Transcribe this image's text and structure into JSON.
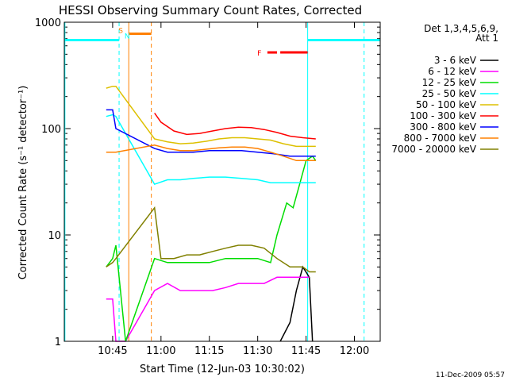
{
  "chart_data": {
    "type": "line",
    "title": "HESSI Observing Summary Count Rates, Corrected",
    "xlabel": "Start Time (12-Jun-03 10:30:02)",
    "ylabel": "Corrected Count Rate (s⁻¹ detector⁻¹)",
    "x_unit": "minutes since 10:30",
    "xlim": [
      30.0,
      128.0
    ],
    "ylim": [
      1,
      1000
    ],
    "y_scale": "log",
    "x_ticks": [
      {
        "v": 45,
        "label": "10:45"
      },
      {
        "v": 60,
        "label": "11:00"
      },
      {
        "v": 75,
        "label": "11:15"
      },
      {
        "v": 90,
        "label": "11:30"
      },
      {
        "v": 105,
        "label": "11:45"
      },
      {
        "v": 120,
        "label": "12:00"
      }
    ],
    "y_ticks": [
      {
        "v": 1,
        "label": "1"
      },
      {
        "v": 10,
        "label": "10"
      },
      {
        "v": 100,
        "label": "100"
      },
      {
        "v": 1000,
        "label": "1000"
      }
    ],
    "legend_title": "Det 1,3,4,5,6,9,",
    "legend_subtitle": "Att 1",
    "legend_placement": "right",
    "series": [
      {
        "name": "3 - 6 keV",
        "color": "#000000",
        "points": [
          [
            97,
            1
          ],
          [
            100,
            1.5
          ],
          [
            102,
            3
          ],
          [
            104,
            5
          ],
          [
            106,
            4
          ],
          [
            107,
            1
          ]
        ]
      },
      {
        "name": "6 - 12 keV",
        "color": "#ff00ff",
        "points": [
          [
            43,
            2.5
          ],
          [
            45,
            2.5
          ],
          [
            46,
            1
          ],
          [
            49,
            1
          ],
          [
            58,
            3
          ],
          [
            62,
            3.5
          ],
          [
            66,
            3
          ],
          [
            72,
            3
          ],
          [
            76,
            3
          ],
          [
            80,
            3.2
          ],
          [
            84,
            3.5
          ],
          [
            88,
            3.5
          ],
          [
            92,
            3.5
          ],
          [
            96,
            4
          ],
          [
            100,
            4
          ],
          [
            104,
            4
          ],
          [
            106,
            4
          ]
        ]
      },
      {
        "name": "12 - 25 keV",
        "color": "#00dd00",
        "points": [
          [
            43,
            5
          ],
          [
            45,
            6
          ],
          [
            46,
            8
          ],
          [
            49,
            1
          ],
          [
            58,
            6
          ],
          [
            62,
            5.5
          ],
          [
            66,
            5.5
          ],
          [
            70,
            5.5
          ],
          [
            75,
            5.5
          ],
          [
            80,
            6
          ],
          [
            85,
            6
          ],
          [
            90,
            6
          ],
          [
            94,
            5.5
          ],
          [
            96,
            10
          ],
          [
            99,
            20
          ],
          [
            101,
            18
          ],
          [
            103,
            30
          ],
          [
            105,
            50
          ],
          [
            107,
            55
          ],
          [
            108,
            50
          ]
        ]
      },
      {
        "name": "25 - 50 keV",
        "color": "#00ffff",
        "points": [
          [
            43,
            130
          ],
          [
            45,
            135
          ],
          [
            46,
            130
          ],
          [
            58,
            30
          ],
          [
            62,
            33
          ],
          [
            66,
            33
          ],
          [
            70,
            34
          ],
          [
            75,
            35
          ],
          [
            80,
            35
          ],
          [
            85,
            34
          ],
          [
            90,
            33
          ],
          [
            94,
            31
          ],
          [
            98,
            31
          ],
          [
            102,
            31
          ],
          [
            106,
            31
          ],
          [
            108,
            31
          ]
        ]
      },
      {
        "name": "50 - 100 keV",
        "color": "#ddc000",
        "points": [
          [
            43,
            240
          ],
          [
            45,
            250
          ],
          [
            46,
            250
          ],
          [
            58,
            80
          ],
          [
            62,
            75
          ],
          [
            66,
            72
          ],
          [
            70,
            73
          ],
          [
            74,
            76
          ],
          [
            78,
            80
          ],
          [
            82,
            82
          ],
          [
            86,
            82
          ],
          [
            90,
            80
          ],
          [
            94,
            78
          ],
          [
            98,
            72
          ],
          [
            102,
            68
          ],
          [
            106,
            68
          ],
          [
            108,
            68
          ]
        ]
      },
      {
        "name": "100 - 300 keV",
        "color": "#ff0000",
        "points": [
          [
            58,
            140
          ],
          [
            60,
            115
          ],
          [
            64,
            95
          ],
          [
            68,
            88
          ],
          [
            72,
            90
          ],
          [
            76,
            95
          ],
          [
            80,
            100
          ],
          [
            84,
            103
          ],
          [
            88,
            102
          ],
          [
            92,
            98
          ],
          [
            96,
            92
          ],
          [
            100,
            85
          ],
          [
            104,
            82
          ],
          [
            108,
            80
          ]
        ]
      },
      {
        "name": "300 - 800 keV",
        "color": "#0000ff",
        "points": [
          [
            43,
            150
          ],
          [
            45,
            150
          ],
          [
            46,
            100
          ],
          [
            58,
            65
          ],
          [
            62,
            60
          ],
          [
            66,
            60
          ],
          [
            70,
            60
          ],
          [
            75,
            62
          ],
          [
            80,
            62
          ],
          [
            85,
            62
          ],
          [
            90,
            60
          ],
          [
            95,
            58
          ],
          [
            100,
            55
          ],
          [
            104,
            55
          ],
          [
            108,
            55
          ]
        ]
      },
      {
        "name": "800 - 7000 keV",
        "color": "#ff8000",
        "points": [
          [
            43,
            60
          ],
          [
            45,
            60
          ],
          [
            46,
            60
          ],
          [
            58,
            70
          ],
          [
            62,
            65
          ],
          [
            66,
            62
          ],
          [
            70,
            62
          ],
          [
            74,
            64
          ],
          [
            78,
            66
          ],
          [
            82,
            67
          ],
          [
            86,
            67
          ],
          [
            90,
            65
          ],
          [
            94,
            60
          ],
          [
            98,
            55
          ],
          [
            102,
            50
          ],
          [
            106,
            50
          ],
          [
            108,
            50
          ]
        ]
      },
      {
        "name": "7000 - 20000 keV",
        "color": "#808000",
        "points": [
          [
            43,
            5
          ],
          [
            45,
            5.5
          ],
          [
            46,
            6
          ],
          [
            58,
            18
          ],
          [
            60,
            6
          ],
          [
            64,
            6
          ],
          [
            68,
            6.5
          ],
          [
            72,
            6.5
          ],
          [
            76,
            7
          ],
          [
            80,
            7.5
          ],
          [
            84,
            8
          ],
          [
            88,
            8
          ],
          [
            92,
            7.5
          ],
          [
            96,
            6
          ],
          [
            100,
            5
          ],
          [
            104,
            5
          ],
          [
            106,
            4.5
          ],
          [
            108,
            4.5
          ]
        ]
      }
    ],
    "annotations": [
      {
        "text": "S",
        "x": 47.5,
        "y": 850,
        "color": "#ff8000"
      },
      {
        "text": "N",
        "x": 49.5,
        "y": 750,
        "color": "#00ffff"
      },
      {
        "text": "F",
        "x": 90.5,
        "y": 520,
        "color": "#ff0000"
      }
    ],
    "bars": [
      {
        "name": "saa-bar",
        "color": "#00ffff",
        "x0": 30.0,
        "x1": 47.0,
        "y": 680
      },
      {
        "name": "saa-bar",
        "color": "#00ffff",
        "x0": 105.5,
        "x1": 128.0,
        "y": 680
      },
      {
        "name": "night-bar",
        "color": "#ff8000",
        "x0": 50.0,
        "x1": 57.0,
        "y": 780
      },
      {
        "name": "flare-bar",
        "color": "#ff0000",
        "x0": 93.0,
        "x1": 96.0,
        "y": 520
      },
      {
        "name": "flare-bar",
        "color": "#ff0000",
        "x0": 97.0,
        "x1": 105.5,
        "y": 520
      }
    ],
    "vlines": [
      {
        "name": "saa-start-line",
        "color": "#00ffff",
        "x": 30.2,
        "dashed": false
      },
      {
        "name": "saa-end-line",
        "color": "#00ffff",
        "x": 47.0,
        "dashed": true
      },
      {
        "name": "night-start-line",
        "color": "#ff8000",
        "x": 50.0,
        "dashed": false
      },
      {
        "name": "night-end-line",
        "color": "#ff8000",
        "x": 57.0,
        "dashed": true
      },
      {
        "name": "saa-start-line",
        "color": "#00ffff",
        "x": 105.5,
        "dashed": false
      },
      {
        "name": "saa-end-line",
        "color": "#00ffff",
        "x": 123.0,
        "dashed": true
      }
    ],
    "timestamp": "11-Dec-2009 05:57"
  }
}
